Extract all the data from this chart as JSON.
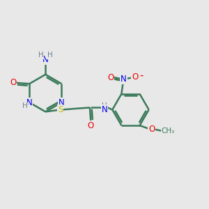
{
  "background_color": "#e8e8e8",
  "bond_color": "#3a7a5a",
  "bond_width": 1.8,
  "atom_colors": {
    "N": "#0000ee",
    "O": "#ee0000",
    "S": "#bbbb00",
    "H": "#708090",
    "C": "#3a7a5a"
  },
  "font_size": 8.5,
  "figsize": [
    3.0,
    3.0
  ],
  "dpi": 100
}
